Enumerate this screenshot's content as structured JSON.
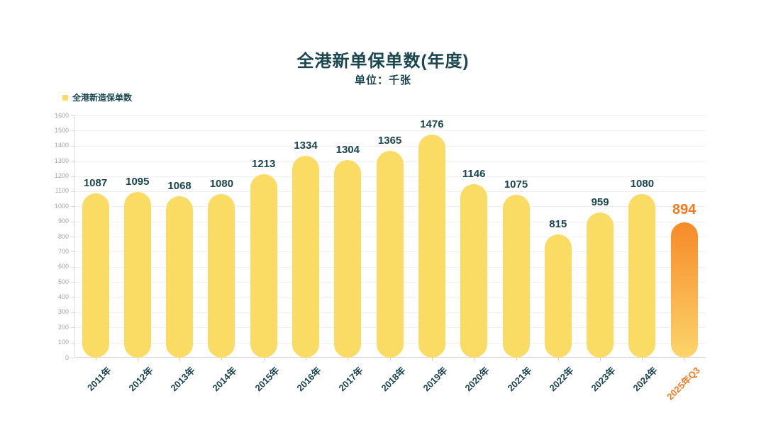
{
  "chart_data": {
    "type": "bar",
    "title": "全港新单保单数(年度)",
    "subtitle": "单位：千张",
    "legend": [
      "全港新造保单数"
    ],
    "legend_position": "top-left",
    "categories": [
      "2011年",
      "2012年",
      "2013年",
      "2014年",
      "2015年",
      "2016年",
      "2017年",
      "2018年",
      "2019年",
      "2020年",
      "2021年",
      "2022年",
      "2023年",
      "2024年",
      "2025年Q3"
    ],
    "values": [
      1087,
      1095,
      1068,
      1080,
      1213,
      1334,
      1304,
      1365,
      1476,
      1146,
      1075,
      815,
      959,
      1080,
      894
    ],
    "highlight_index": 14,
    "xlabel": "",
    "ylabel": "",
    "ylim": [
      0,
      1600
    ],
    "y_tick_step": 100,
    "grid": true,
    "colors": {
      "bar": "#FADB64",
      "highlight_gradient_top": "#F68A28",
      "highlight_gradient_bottom": "#FCD56B",
      "value_label": "#1B4650",
      "highlight_value_label": "#F5791E",
      "x_tick_text": "#1B4650",
      "highlight_x_tick_text": "#F5791E",
      "y_tick_text": "#A5A5A5",
      "axis_line": "#DCDCDC",
      "grid_line": "#F2F1EF",
      "title_text": "#1B4650"
    }
  }
}
